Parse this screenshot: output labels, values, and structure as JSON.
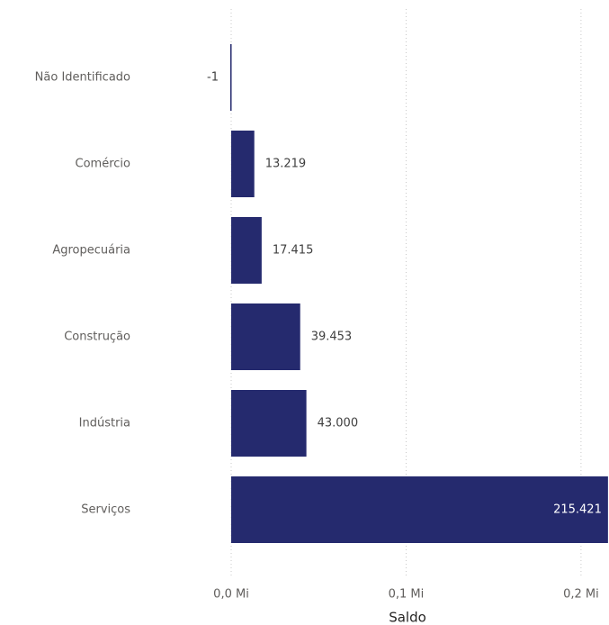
{
  "chart_data": {
    "type": "hbar",
    "x_label": "Saldo",
    "categories": [
      "Não Identificado",
      "Comércio",
      "Agropecuária",
      "Construção",
      "Indústria",
      "Serviços"
    ],
    "values": [
      -1,
      13219,
      17415,
      39453,
      43000,
      215421
    ],
    "value_labels": [
      "-1",
      "13.219",
      "17.415",
      "39.453",
      "43.000",
      "215.421"
    ],
    "color": "#252a6e",
    "xlim": [
      0,
      216000
    ],
    "xticks": [
      {
        "value": 0,
        "label": "0,0 Mi"
      },
      {
        "value": 100000,
        "label": "0,1 Mi"
      },
      {
        "value": 200000,
        "label": "0,2 Mi"
      }
    ],
    "grid": true
  }
}
